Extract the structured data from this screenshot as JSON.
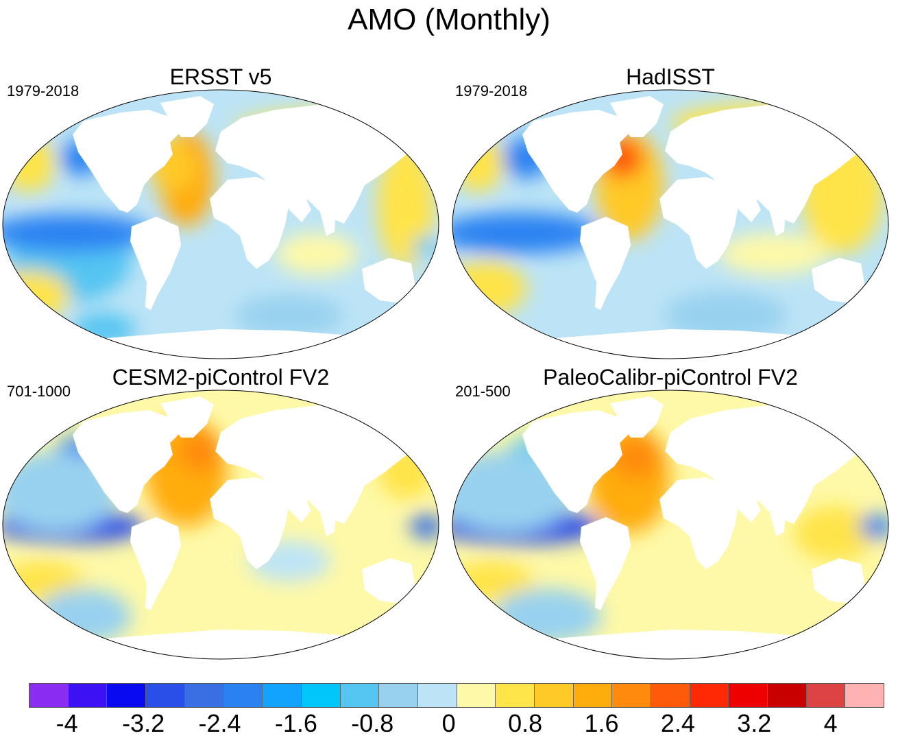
{
  "figure": {
    "title": "AMO (Monthly)"
  },
  "panels": [
    {
      "title": "ERSST v5",
      "period": "1979-2018"
    },
    {
      "title": "HadISST",
      "period": "1979-2018"
    },
    {
      "title": "CESM2-piControl FV2",
      "period": "701-1000"
    },
    {
      "title": "PaleoCalibr-piControl FV2",
      "period": "201-500"
    }
  ],
  "colorbar": {
    "colors": [
      "#8a2cf2",
      "#3c12f5",
      "#0a0af0",
      "#2a4ee8",
      "#3a6fe4",
      "#2a82f2",
      "#12a3ff",
      "#00c6f9",
      "#55c5f2",
      "#98d1ef",
      "#bde4f6",
      "#fef9a8",
      "#ffe44a",
      "#ffc928",
      "#ffac0d",
      "#ff8a0d",
      "#ff5a0a",
      "#ff2a05",
      "#ee0000",
      "#c80000",
      "#dd4343",
      "#ffb2b2"
    ],
    "labels": [
      "-4",
      "-3.2",
      "-2.4",
      "-1.6",
      "-0.8",
      "0",
      "0.8",
      "1.6",
      "2.4",
      "3.2",
      "4"
    ]
  }
}
